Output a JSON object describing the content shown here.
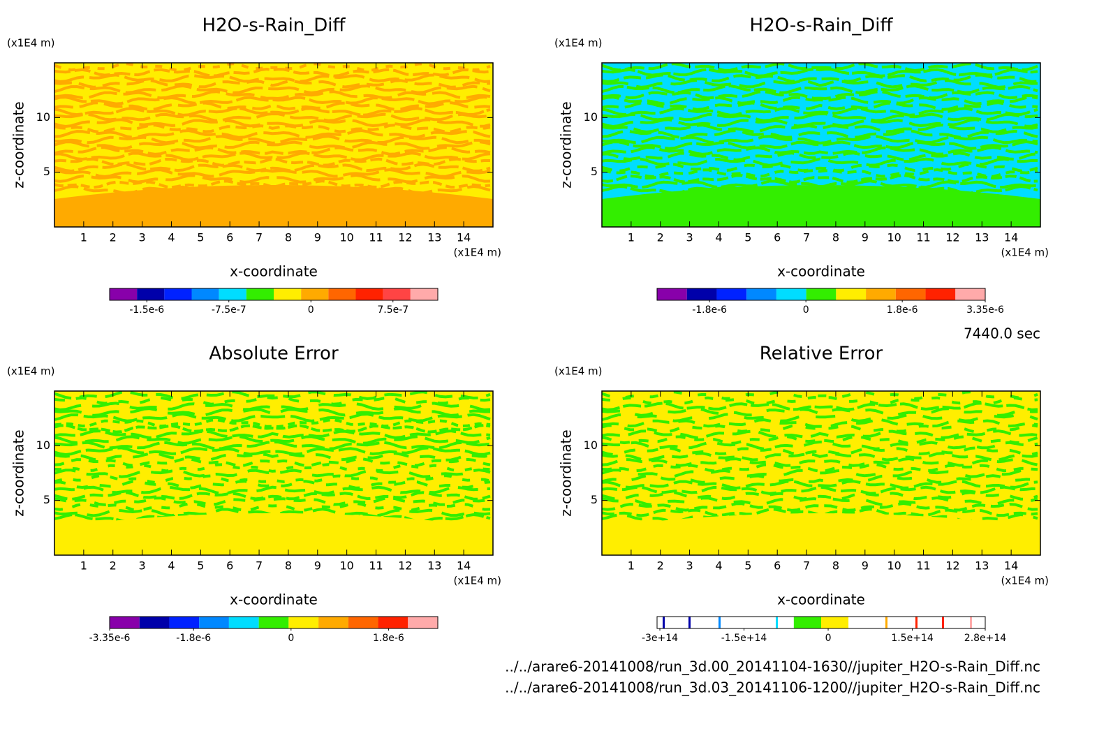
{
  "time_label": "7440.0 sec",
  "files": [
    "../../arare6-20141008/run_3d.00_20141104-1630//jupiter_H2O-s-Rain_Diff.nc",
    "../../arare6-20141008/run_3d.03_20141106-1200//jupiter_H2O-s-Rain_Diff.nc"
  ],
  "chart_data": [
    {
      "type": "contour",
      "title": "H2O-s-Rain_Diff",
      "xlabel": "x-coordinate",
      "ylabel": "z-coordinate",
      "x_unit": "(x1E4 m)",
      "y_unit": "(x1E4 m)",
      "xlim": [
        0,
        15
      ],
      "ylim": [
        0,
        15
      ],
      "xticks": [
        1,
        2,
        3,
        4,
        5,
        6,
        7,
        8,
        9,
        10,
        11,
        12,
        13,
        14
      ],
      "yticks": [
        5,
        10
      ],
      "colorbar": {
        "clim": [
          -1.84e-06,
          1.16e-06
        ],
        "ticks": [
          {
            "value": -1.5e-06,
            "label": "-1.5e-6"
          },
          {
            "value": -7.5e-07,
            "label": "-7.5e-7"
          },
          0,
          {
            "value": 7.5e-07,
            "label": "7.5e-7"
          }
        ],
        "colors": [
          "#8800aa",
          "#0000aa",
          "#0022ff",
          "#0088ff",
          "#00ddff",
          "#33ee00",
          "#ffee00",
          "#ffaa00",
          "#ff6600",
          "#ff2200",
          "#ff4444",
          "#ffaaaa"
        ]
      }
    },
    {
      "type": "contour",
      "title": "H2O-s-Rain_Diff",
      "xlabel": "x-coordinate",
      "ylabel": "z-coordinate",
      "x_unit": "(x1E4 m)",
      "y_unit": "(x1E4 m)",
      "xlim": [
        0,
        15
      ],
      "ylim": [
        0,
        15
      ],
      "xticks": [
        1,
        2,
        3,
        4,
        5,
        6,
        7,
        8,
        9,
        10,
        11,
        12,
        13,
        14
      ],
      "yticks": [
        5,
        10
      ],
      "colorbar": {
        "clim": [
          -2.78e-06,
          3.35e-06
        ],
        "ticks": [
          {
            "value": -1.8e-06,
            "label": "-1.8e-6"
          },
          0,
          {
            "value": 1.8e-06,
            "label": "1.8e-6"
          },
          {
            "value": 3.35e-06,
            "label": "3.35e-6"
          }
        ],
        "colors": [
          "#8800aa",
          "#0000aa",
          "#0022ff",
          "#0088ff",
          "#00ddff",
          "#33ee00",
          "#ffee00",
          "#ffaa00",
          "#ff6600",
          "#ff2200",
          "#ffaaaa"
        ]
      }
    },
    {
      "type": "contour",
      "title": "Absolute Error",
      "xlabel": "x-coordinate",
      "ylabel": "z-coordinate",
      "x_unit": "(x1E4 m)",
      "y_unit": "(x1E4 m)",
      "xlim": [
        0,
        15
      ],
      "ylim": [
        0,
        15
      ],
      "xticks": [
        1,
        2,
        3,
        4,
        5,
        6,
        7,
        8,
        9,
        10,
        11,
        12,
        13,
        14
      ],
      "yticks": [
        5,
        10
      ],
      "colorbar": {
        "clim": [
          -3.35e-06,
          2.71e-06
        ],
        "ticks": [
          {
            "value": -3.35e-06,
            "label": "-3.35e-6"
          },
          {
            "value": -1.8e-06,
            "label": "-1.8e-6"
          },
          0,
          {
            "value": 1.8e-06,
            "label": "1.8e-6"
          }
        ],
        "colors": [
          "#8800aa",
          "#0000aa",
          "#0022ff",
          "#0088ff",
          "#00ddff",
          "#33ee00",
          "#ffee00",
          "#ffaa00",
          "#ff6600",
          "#ff2200",
          "#ffaaaa"
        ]
      }
    },
    {
      "type": "contour",
      "title": "Relative Error",
      "xlabel": "x-coordinate",
      "ylabel": "z-coordinate",
      "x_unit": "(x1E4 m)",
      "y_unit": "(x1E4 m)",
      "xlim": [
        0,
        15
      ],
      "ylim": [
        0,
        15
      ],
      "xticks": [
        1,
        2,
        3,
        4,
        5,
        6,
        7,
        8,
        9,
        10,
        11,
        12,
        13,
        14
      ],
      "yticks": [
        5,
        10
      ],
      "colorbar": {
        "clim": [
          -305000000000000.0,
          280000000000000.0
        ],
        "ticks": [
          {
            "value": -300000000000000.0,
            "label": "-3e+14"
          },
          {
            "value": -150000000000000.0,
            "label": "-1.5e+14"
          },
          0,
          {
            "value": 150000000000000.0,
            "label": "1.5e+14"
          },
          {
            "value": 280000000000000.0,
            "label": "2.8e+14"
          }
        ],
        "colors": [
          "#ffffff",
          "#ffffff",
          "#ffffff",
          "#ffffff",
          "#ffffff",
          "#33ee00",
          "#ffee00",
          "#ffffff",
          "#ffffff",
          "#ffffff",
          "#ffffff",
          "#ffffff"
        ]
      }
    }
  ]
}
